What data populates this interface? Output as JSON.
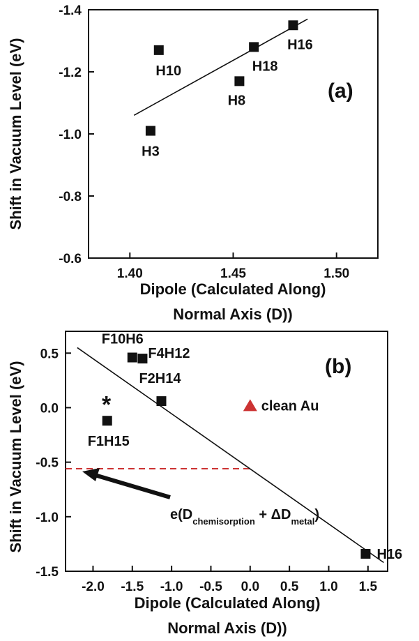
{
  "chart_data": [
    {
      "type": "scatter",
      "panel_label": "(a)",
      "xlabel_lines": [
        "Dipole (Calculated Along)",
        "Normal Axis (D))"
      ],
      "ylabel": "Shift in Vacuum Level (eV)",
      "xlim": [
        1.38,
        1.52
      ],
      "ylim": [
        -0.6,
        -1.4
      ],
      "x_ticks": [
        1.4,
        1.45,
        1.5
      ],
      "x_tick_labels": [
        "1.40",
        "1.45",
        "1.50"
      ],
      "y_ticks": [
        -1.4,
        -1.2,
        -1.0,
        -0.8,
        -0.6
      ],
      "y_tick_labels": [
        "-1.4",
        "-1.2",
        "-1.0",
        "-0.8",
        "-0.6"
      ],
      "points": [
        {
          "label": "H10",
          "x": 1.414,
          "y": -1.27
        },
        {
          "label": "H3",
          "x": 1.41,
          "y": -1.01
        },
        {
          "label": "H8",
          "x": 1.453,
          "y": -1.17
        },
        {
          "label": "H18",
          "x": 1.46,
          "y": -1.28
        },
        {
          "label": "H16",
          "x": 1.479,
          "y": -1.35
        }
      ],
      "fit_line": {
        "x": [
          1.402,
          1.486
        ],
        "y": [
          -1.06,
          -1.37
        ]
      }
    },
    {
      "type": "scatter",
      "panel_label": "(b)",
      "xlabel_lines": [
        "Dipole (Calculated Along)",
        "Normal Axis (D))"
      ],
      "ylabel": "Shift in Vacuum Level (eV)",
      "xlim": [
        -2.35,
        1.75
      ],
      "ylim": [
        -1.5,
        0.7
      ],
      "x_ticks": [
        -2.0,
        -1.5,
        -1.0,
        -0.5,
        0.0,
        0.5,
        1.0,
        1.5
      ],
      "x_tick_labels": [
        "-2.0",
        "-1.5",
        "-1.0",
        "-0.5",
        "0.0",
        "0.5",
        "1.0",
        "1.5"
      ],
      "y_ticks": [
        0.5,
        0.0,
        -0.5,
        -1.0,
        -1.5
      ],
      "y_tick_labels": [
        "0.5",
        "0.0",
        "-0.5",
        "-1.0",
        "-1.5"
      ],
      "points": [
        {
          "label": "F10H6",
          "x": -1.5,
          "y": 0.46
        },
        {
          "label": "F4H12",
          "x": -1.37,
          "y": 0.45
        },
        {
          "label": "F2H14",
          "x": -1.13,
          "y": 0.06
        },
        {
          "label": "F1H15",
          "x": -1.82,
          "y": -0.12
        },
        {
          "label": "H16",
          "x": 1.47,
          "y": -1.34
        }
      ],
      "asterisk": {
        "text": "*",
        "x": -1.83,
        "y": 0.07
      },
      "clean_au": {
        "label": "clean Au",
        "x": 0.0,
        "y": 0.02,
        "color": "#cc3333"
      },
      "fit_line": {
        "x": [
          -2.2,
          1.7
        ],
        "y": [
          0.55,
          -1.42
        ]
      },
      "dashed_line": {
        "x": [
          -2.35,
          0.02
        ],
        "y": -0.56,
        "color": "#cc3333"
      },
      "annotation": {
        "prefix": "e(D",
        "sub1": "chemisorption",
        "middle": " + ΔD",
        "sub2": "metal",
        "suffix": ")"
      }
    }
  ]
}
